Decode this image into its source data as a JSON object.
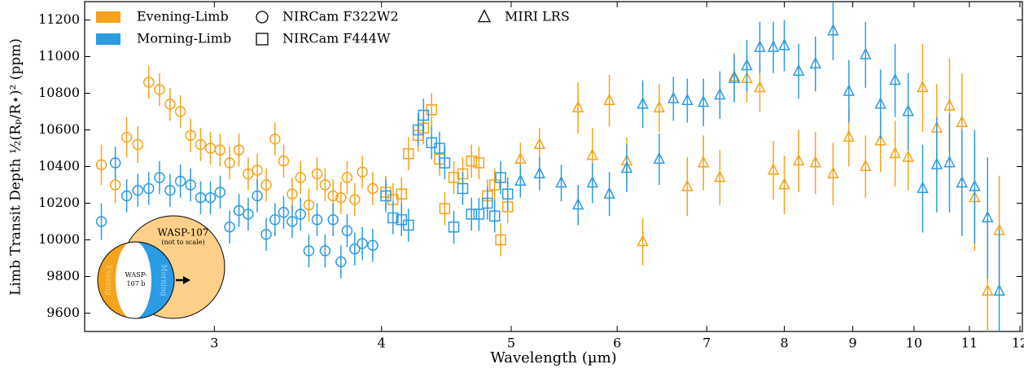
{
  "chart_data": {
    "type": "errorbar",
    "xlabel": "Wavelength (µm)",
    "ylabel": "Limb Transit Depth ½(Rₚ/R⋆)² (ppm)",
    "xscale": "log",
    "xlim": [
      2.4,
      12.05
    ],
    "ylim": [
      9500,
      11300
    ],
    "xticks": [
      3,
      4,
      5,
      6,
      7,
      8,
      9,
      10,
      11,
      12
    ],
    "yticks": [
      9600,
      9800,
      10000,
      10200,
      10400,
      10600,
      10800,
      11000,
      11200
    ],
    "limbs": [
      {
        "name": "Evening-Limb",
        "color": "#f5a31a"
      },
      {
        "name": "Morning-Limb",
        "color": "#2b9be3"
      }
    ],
    "instruments": [
      {
        "name": "NIRCam F322W2",
        "marker": "circle"
      },
      {
        "name": "NIRCam F444W",
        "marker": "square"
      },
      {
        "name": "MIRI LRS",
        "marker": "triangle"
      }
    ],
    "series": [
      {
        "limb": "Evening-Limb",
        "instrument": "NIRCam F322W2",
        "x": [
          2.47,
          2.53,
          2.58,
          2.63,
          2.68,
          2.73,
          2.78,
          2.83,
          2.88,
          2.93,
          2.98,
          3.03,
          3.08,
          3.13,
          3.18,
          3.23,
          3.28,
          3.33,
          3.38,
          3.43,
          3.48,
          3.53,
          3.58,
          3.63,
          3.68,
          3.73,
          3.77,
          3.82,
          3.87,
          3.94
        ],
        "values": [
          10410,
          10300,
          10560,
          10520,
          10860,
          10820,
          10740,
          10700,
          10570,
          10520,
          10500,
          10490,
          10420,
          10490,
          10360,
          10380,
          10300,
          10550,
          10430,
          10250,
          10340,
          10190,
          10360,
          10300,
          10240,
          10230,
          10340,
          10220,
          10370,
          10280
        ],
        "errors": [
          110,
          100,
          110,
          100,
          90,
          90,
          90,
          90,
          90,
          90,
          90,
          90,
          90,
          90,
          90,
          90,
          90,
          90,
          90,
          90,
          90,
          90,
          90,
          90,
          90,
          90,
          90,
          90,
          90,
          90
        ]
      },
      {
        "limb": "Morning-Limb",
        "instrument": "NIRCam F322W2",
        "x": [
          2.47,
          2.53,
          2.58,
          2.63,
          2.68,
          2.73,
          2.78,
          2.83,
          2.88,
          2.93,
          2.98,
          3.03,
          3.08,
          3.13,
          3.18,
          3.23,
          3.28,
          3.33,
          3.38,
          3.43,
          3.48,
          3.53,
          3.58,
          3.63,
          3.68,
          3.73,
          3.77,
          3.82,
          3.87,
          3.94
        ],
        "values": [
          10100,
          10420,
          10240,
          10270,
          10280,
          10340,
          10270,
          10320,
          10300,
          10230,
          10230,
          10260,
          10070,
          10160,
          10140,
          10240,
          10030,
          10110,
          10150,
          10100,
          10140,
          9940,
          10110,
          9940,
          10110,
          9880,
          10050,
          9950,
          9980,
          9970
        ],
        "errors": [
          100,
          90,
          90,
          90,
          90,
          90,
          90,
          90,
          90,
          90,
          90,
          90,
          90,
          90,
          90,
          90,
          90,
          90,
          90,
          90,
          90,
          90,
          90,
          90,
          90,
          90,
          90,
          90,
          90,
          90
        ]
      },
      {
        "limb": "Evening-Limb",
        "instrument": "NIRCam F444W",
        "x": [
          4.03,
          4.08,
          4.14,
          4.19,
          4.26,
          4.3,
          4.36,
          4.42,
          4.46,
          4.53,
          4.6,
          4.67,
          4.73,
          4.8,
          4.86,
          4.91,
          4.97
        ],
        "values": [
          10260,
          10220,
          10250,
          10470,
          10570,
          10610,
          10710,
          10440,
          10170,
          10340,
          10360,
          10430,
          10420,
          10240,
          10300,
          10000,
          10180
        ],
        "errors": [
          90,
          90,
          90,
          90,
          90,
          90,
          90,
          90,
          90,
          90,
          90,
          90,
          90,
          90,
          90,
          90,
          90
        ]
      },
      {
        "limb": "Morning-Limb",
        "instrument": "NIRCam F444W",
        "x": [
          4.03,
          4.08,
          4.14,
          4.19,
          4.26,
          4.3,
          4.36,
          4.42,
          4.46,
          4.53,
          4.6,
          4.67,
          4.73,
          4.8,
          4.86,
          4.91,
          4.97
        ],
        "values": [
          10240,
          10120,
          10110,
          10080,
          10600,
          10680,
          10530,
          10500,
          10420,
          10070,
          10280,
          10140,
          10140,
          10200,
          10130,
          10340,
          10250
        ],
        "errors": [
          90,
          90,
          90,
          90,
          90,
          90,
          90,
          90,
          90,
          90,
          90,
          90,
          90,
          90,
          90,
          90,
          90
        ]
      },
      {
        "limb": "Evening-Limb",
        "instrument": "MIRI LRS",
        "x": [
          5.08,
          5.25,
          5.61,
          5.75,
          5.92,
          6.1,
          6.27,
          6.45,
          6.77,
          6.96,
          7.16,
          7.34,
          7.5,
          7.67,
          7.85,
          8.0,
          8.2,
          8.44,
          8.7,
          8.94,
          9.2,
          9.44,
          9.68,
          9.9,
          10.15,
          10.4,
          10.63,
          10.86,
          11.1,
          11.35,
          11.58
        ],
        "values": [
          10440,
          10520,
          10720,
          10460,
          10760,
          10430,
          9990,
          10720,
          10290,
          10420,
          10340,
          10890,
          10880,
          10830,
          10380,
          10300,
          10430,
          10420,
          10360,
          10560,
          10400,
          10540,
          10470,
          10450,
          10830,
          10610,
          10730,
          10640,
          10230,
          9720,
          10050
        ],
        "errors": [
          90,
          90,
          140,
          150,
          140,
          130,
          130,
          130,
          160,
          150,
          150,
          130,
          130,
          130,
          160,
          160,
          170,
          170,
          170,
          160,
          170,
          170,
          180,
          180,
          240,
          240,
          260,
          270,
          290,
          350,
          300
        ]
      },
      {
        "limb": "Morning-Limb",
        "instrument": "MIRI LRS",
        "x": [
          5.08,
          5.25,
          5.45,
          5.61,
          5.75,
          5.92,
          6.1,
          6.27,
          6.45,
          6.61,
          6.77,
          6.96,
          7.16,
          7.34,
          7.5,
          7.67,
          7.85,
          8.0,
          8.2,
          8.44,
          8.7,
          8.94,
          9.2,
          9.44,
          9.68,
          9.9,
          10.15,
          10.4,
          10.63,
          10.86,
          11.1,
          11.35,
          11.58
        ],
        "values": [
          10320,
          10360,
          10310,
          10190,
          10310,
          10250,
          10390,
          10740,
          10440,
          10770,
          10760,
          10750,
          10790,
          10880,
          10950,
          11050,
          11050,
          11060,
          10920,
          10960,
          11140,
          10810,
          11010,
          10740,
          10870,
          10700,
          10280,
          10410,
          10420,
          10310,
          10290,
          10120,
          9720
        ],
        "errors": [
          90,
          90,
          100,
          110,
          110,
          120,
          130,
          130,
          140,
          120,
          120,
          130,
          130,
          130,
          140,
          140,
          140,
          140,
          150,
          150,
          160,
          170,
          180,
          190,
          200,
          210,
          240,
          260,
          270,
          290,
          310,
          330,
          340
        ]
      }
    ],
    "inset": {
      "star": "WASP-107",
      "note": "(not to scale)",
      "planet": "WASP-107 b",
      "left": "Evening",
      "right": "Morning"
    }
  }
}
